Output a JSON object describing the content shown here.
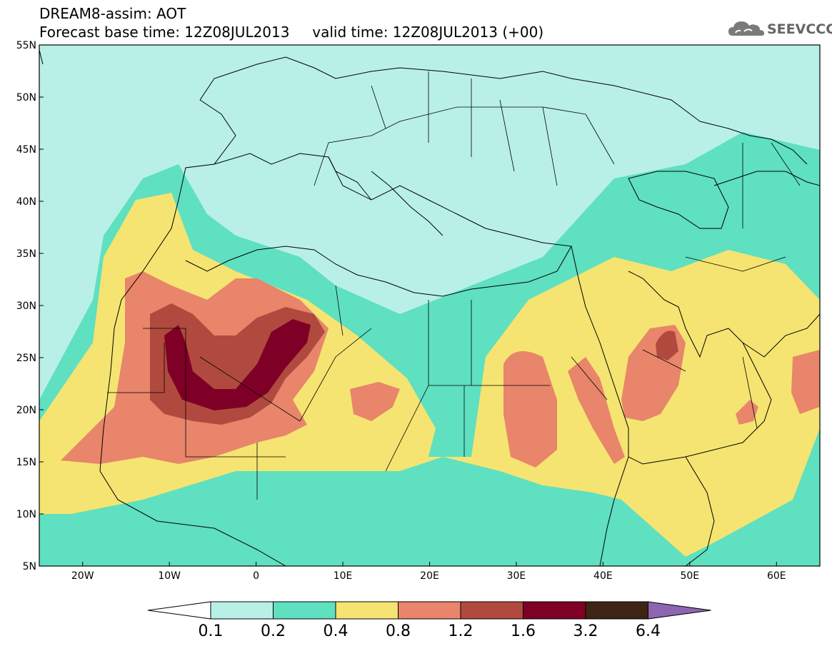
{
  "header": {
    "title": "DREAM8-assim: AOT",
    "subtitle": "Forecast base time: 12Z08JUL2013     valid time: 12Z08JUL2013 (+00)",
    "logo_text": "SEEVCCC"
  },
  "map": {
    "lon_range": [
      -25,
      65
    ],
    "lat_range": [
      5,
      55
    ],
    "lat_ticks": [
      "55N",
      "50N",
      "45N",
      "40N",
      "35N",
      "30N",
      "25N",
      "20N",
      "15N",
      "10N",
      "5N"
    ],
    "lon_ticks": [
      "20W",
      "10W",
      "0",
      "10E",
      "20E",
      "30E",
      "40E",
      "50E",
      "60E"
    ]
  },
  "colorbar": {
    "labels": [
      "0.1",
      "0.2",
      "0.4",
      "0.8",
      "1.2",
      "1.6",
      "3.2",
      "6.4"
    ],
    "colors": [
      "#b8f0e8",
      "#5fe0c0",
      "#f5e471",
      "#e8856a",
      "#b04a3e",
      "#7f0026",
      "#3e2414",
      "#8c66b0"
    ]
  }
}
